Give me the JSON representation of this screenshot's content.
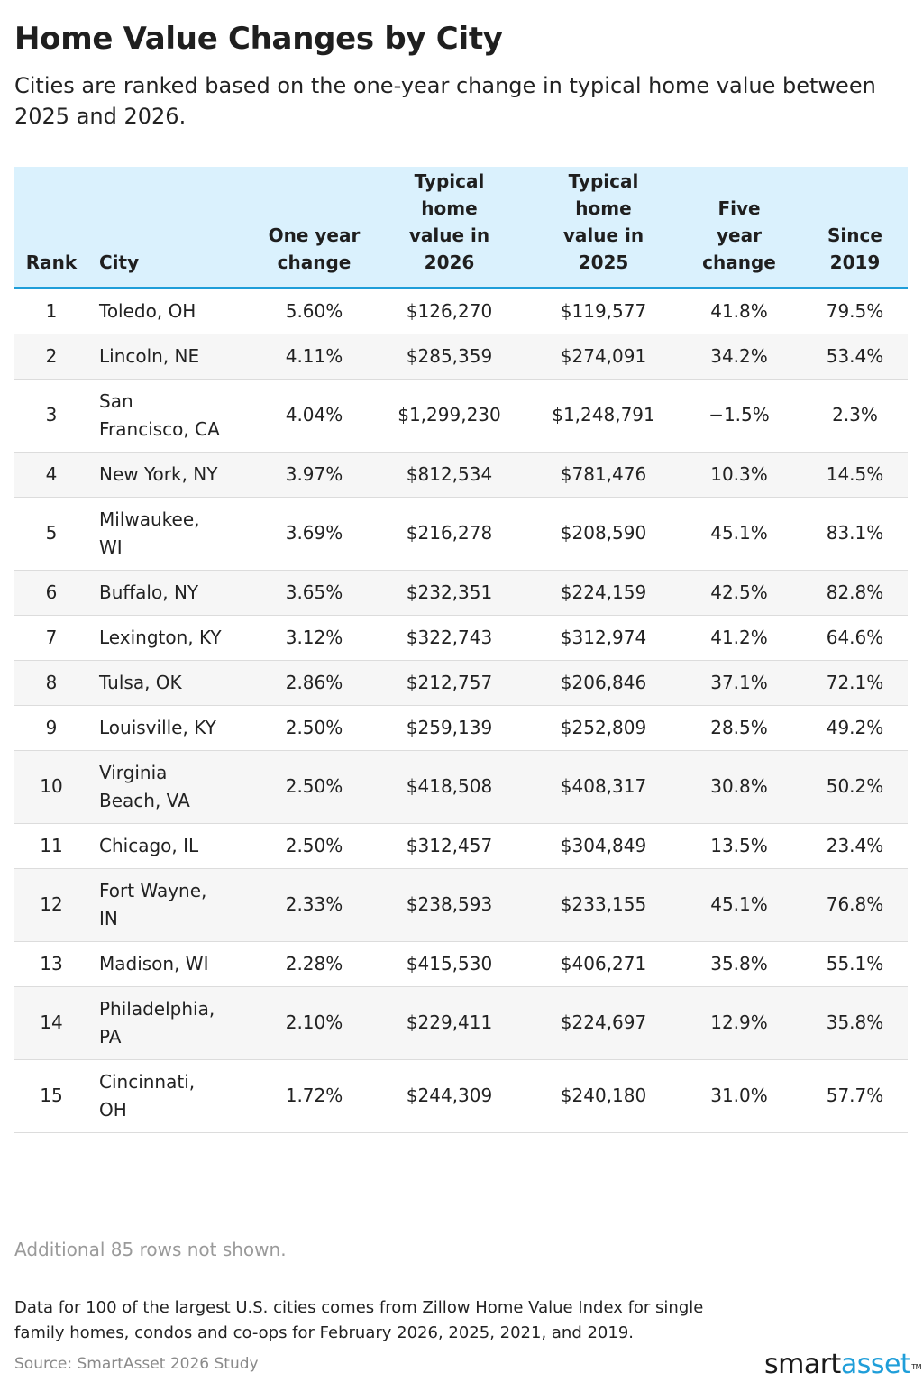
{
  "title": "Home Value Changes by City",
  "subtitle": "Cities are ranked based on the one-year change in typical home value between 2025 and 2026.",
  "columns": [
    "Rank",
    "City",
    "One year change",
    "Typical home value in 2026",
    "Typical home value in 2025",
    "Five year change",
    "Since 2019"
  ],
  "rows": [
    [
      "1",
      "Toledo, OH",
      "5.60%",
      "$126,270",
      "$119,577",
      "41.8%",
      "79.5%"
    ],
    [
      "2",
      "Lincoln, NE",
      "4.11%",
      "$285,359",
      "$274,091",
      "34.2%",
      "53.4%"
    ],
    [
      "3",
      "San Francisco, CA",
      "4.04%",
      "$1,299,230",
      "$1,248,791",
      "−1.5%",
      "2.3%"
    ],
    [
      "4",
      "New York, NY",
      "3.97%",
      "$812,534",
      "$781,476",
      "10.3%",
      "14.5%"
    ],
    [
      "5",
      "Milwaukee, WI",
      "3.69%",
      "$216,278",
      "$208,590",
      "45.1%",
      "83.1%"
    ],
    [
      "6",
      "Buffalo, NY",
      "3.65%",
      "$232,351",
      "$224,159",
      "42.5%",
      "82.8%"
    ],
    [
      "7",
      "Lexington, KY",
      "3.12%",
      "$322,743",
      "$312,974",
      "41.2%",
      "64.6%"
    ],
    [
      "8",
      "Tulsa, OK",
      "2.86%",
      "$212,757",
      "$206,846",
      "37.1%",
      "72.1%"
    ],
    [
      "9",
      "Louisville, KY",
      "2.50%",
      "$259,139",
      "$252,809",
      "28.5%",
      "49.2%"
    ],
    [
      "10",
      "Virginia Beach, VA",
      "2.50%",
      "$418,508",
      "$408,317",
      "30.8%",
      "50.2%"
    ],
    [
      "11",
      "Chicago, IL",
      "2.50%",
      "$312,457",
      "$304,849",
      "13.5%",
      "23.4%"
    ],
    [
      "12",
      "Fort Wayne, IN",
      "2.33%",
      "$238,593",
      "$233,155",
      "45.1%",
      "76.8%"
    ],
    [
      "13",
      "Madison, WI",
      "2.28%",
      "$415,530",
      "$406,271",
      "35.8%",
      "55.1%"
    ],
    [
      "14",
      "Philadelphia, PA",
      "2.10%",
      "$229,411",
      "$224,697",
      "12.9%",
      "35.8%"
    ],
    [
      "15",
      "Cincinnati, OH",
      "1.72%",
      "$244,309",
      "$240,180",
      "31.0%",
      "57.7%"
    ]
  ],
  "note": "Additional 85 rows not shown.",
  "footnote": "Data for 100 of the largest U.S. cities comes from Zillow Home Value Index for single family homes, condos and co-ops for February 2026, 2025, 2021, and 2019.",
  "source": "Source: SmartAsset 2026 Study",
  "logo": {
    "part1": "smart",
    "part2": "asset",
    "tm": "TM"
  },
  "colors": {
    "header_bg": "#daf1fd",
    "header_rule": "#1f9ed9",
    "row_alt": "#f6f6f6",
    "brand_blue": "#1f9ed9"
  },
  "chart_data": {
    "type": "table",
    "title": "Home Value Changes by City",
    "columns": [
      "Rank",
      "City",
      "One year change",
      "Typical home value in 2026",
      "Typical home value in 2025",
      "Five year change",
      "Since 2019"
    ],
    "rows": [
      [
        1,
        "Toledo, OH",
        5.6,
        126270,
        119577,
        41.8,
        79.5
      ],
      [
        2,
        "Lincoln, NE",
        4.11,
        285359,
        274091,
        34.2,
        53.4
      ],
      [
        3,
        "San Francisco, CA",
        4.04,
        1299230,
        1248791,
        -1.5,
        2.3
      ],
      [
        4,
        "New York, NY",
        3.97,
        812534,
        781476,
        10.3,
        14.5
      ],
      [
        5,
        "Milwaukee, WI",
        3.69,
        216278,
        208590,
        45.1,
        83.1
      ],
      [
        6,
        "Buffalo, NY",
        3.65,
        232351,
        224159,
        42.5,
        82.8
      ],
      [
        7,
        "Lexington, KY",
        3.12,
        322743,
        312974,
        41.2,
        64.6
      ],
      [
        8,
        "Tulsa, OK",
        2.86,
        212757,
        206846,
        37.1,
        72.1
      ],
      [
        9,
        "Louisville, KY",
        2.5,
        259139,
        252809,
        28.5,
        49.2
      ],
      [
        10,
        "Virginia Beach, VA",
        2.5,
        418508,
        408317,
        30.8,
        50.2
      ],
      [
        11,
        "Chicago, IL",
        2.5,
        312457,
        304849,
        13.5,
        23.4
      ],
      [
        12,
        "Fort Wayne, IN",
        2.33,
        238593,
        233155,
        45.1,
        76.8
      ],
      [
        13,
        "Madison, WI",
        2.28,
        415530,
        406271,
        35.8,
        55.1
      ],
      [
        14,
        "Philadelphia, PA",
        2.1,
        229411,
        224697,
        12.9,
        35.8
      ],
      [
        15,
        "Cincinnati, OH",
        1.72,
        244309,
        240180,
        31.0,
        57.7
      ]
    ]
  }
}
